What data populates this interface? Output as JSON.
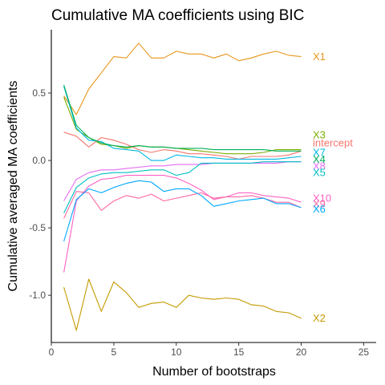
{
  "chart_data": {
    "type": "line",
    "title": "Cumulative MA coefficients using  BIC",
    "xlabel": "Number of bootstraps",
    "ylabel": "Cumulative averaged MA coefficients",
    "xlim": [
      0,
      26
    ],
    "ylim": [
      -1.35,
      0.97
    ],
    "xticks": [
      0,
      5,
      10,
      15,
      20,
      25
    ],
    "yticks": [
      -1.0,
      -0.5,
      0.0,
      0.5
    ],
    "ytick_labels": [
      "-1.0",
      "-0.5",
      "0.0",
      "0.5"
    ],
    "grid": false,
    "legend": "direct labels at line ends (right)",
    "x": [
      1,
      2,
      3,
      4,
      5,
      6,
      7,
      8,
      9,
      10,
      11,
      12,
      13,
      14,
      15,
      16,
      17,
      18,
      19,
      20
    ],
    "series": [
      {
        "name": "X1",
        "color": "#E7961A",
        "label_y": 0.77,
        "values": [
          0.48,
          0.34,
          0.53,
          0.65,
          0.77,
          0.76,
          0.87,
          0.76,
          0.76,
          0.81,
          0.79,
          0.79,
          0.76,
          0.79,
          0.74,
          0.76,
          0.79,
          0.81,
          0.78,
          0.77
        ]
      },
      {
        "name": "X3",
        "color": "#7CAE00",
        "label_y": 0.19,
        "values": [
          0.47,
          0.23,
          0.17,
          0.12,
          0.11,
          0.09,
          0.11,
          0.1,
          0.1,
          0.09,
          0.08,
          0.07,
          0.06,
          0.05,
          0.05,
          0.05,
          0.06,
          0.08,
          0.08,
          0.08
        ]
      },
      {
        "name": "intercept",
        "color": "#F8766D",
        "label_y": 0.13,
        "values": [
          0.21,
          0.18,
          0.1,
          0.17,
          0.15,
          0.12,
          0.08,
          0.06,
          0.08,
          0.07,
          0.05,
          0.05,
          0.04,
          0.03,
          0.01,
          0.03,
          0.03,
          0.03,
          0.04,
          0.07
        ]
      },
      {
        "name": "X7",
        "color": "#00B8E5",
        "label_y": 0.06,
        "values": [
          0.55,
          0.24,
          0.15,
          0.14,
          0.09,
          0.08,
          0.07,
          0.0,
          0.0,
          0.04,
          0.03,
          0.02,
          0.02,
          0.01,
          0.01,
          0.01,
          0.01,
          0.01,
          0.02,
          0.03
        ]
      },
      {
        "name": "X8",
        "color": "#E76BF3",
        "label_y": -0.04,
        "values": [
          -0.3,
          -0.14,
          -0.09,
          -0.07,
          -0.07,
          -0.06,
          -0.05,
          -0.04,
          -0.04,
          -0.03,
          -0.03,
          -0.03,
          -0.02,
          -0.02,
          -0.02,
          -0.02,
          -0.02,
          -0.02,
          -0.01,
          -0.01
        ]
      },
      {
        "name": "X4",
        "color": "#00B05A",
        "label_y": 0.01,
        "values": [
          0.56,
          0.26,
          0.17,
          0.13,
          0.11,
          0.1,
          0.11,
          0.1,
          0.1,
          0.09,
          0.09,
          0.09,
          0.08,
          0.08,
          0.08,
          0.08,
          0.08,
          0.07,
          0.07,
          0.07
        ]
      },
      {
        "name": "X5",
        "color": "#00BFC4",
        "label_y": -0.09,
        "values": [
          -0.39,
          -0.2,
          -0.13,
          -0.1,
          -0.09,
          -0.09,
          -0.08,
          -0.07,
          -0.07,
          -0.11,
          -0.09,
          -0.02,
          -0.02,
          -0.02,
          -0.02,
          -0.02,
          -0.01,
          -0.01,
          -0.01,
          -0.01
        ]
      },
      {
        "name": "X10",
        "color": "#FF61C3",
        "label_y": -0.28,
        "values": [
          -0.83,
          -0.3,
          -0.19,
          -0.14,
          -0.13,
          -0.11,
          -0.11,
          -0.11,
          -0.11,
          -0.13,
          -0.17,
          -0.22,
          -0.29,
          -0.27,
          -0.24,
          -0.24,
          -0.26,
          -0.27,
          -0.28,
          -0.31
        ]
      },
      {
        "name": "X9",
        "color": "#FF67A4",
        "label_y": -0.32,
        "values": [
          -0.43,
          -0.23,
          -0.24,
          -0.37,
          -0.3,
          -0.26,
          -0.28,
          -0.25,
          -0.3,
          -0.28,
          -0.26,
          -0.24,
          -0.28,
          -0.27,
          -0.27,
          -0.26,
          -0.28,
          -0.31,
          -0.31,
          -0.35
        ]
      },
      {
        "name": "X6",
        "color": "#00A9FF",
        "label_y": -0.36,
        "values": [
          -0.6,
          -0.29,
          -0.21,
          -0.24,
          -0.2,
          -0.17,
          -0.15,
          -0.16,
          -0.23,
          -0.21,
          -0.21,
          -0.26,
          -0.34,
          -0.32,
          -0.3,
          -0.29,
          -0.28,
          -0.32,
          -0.32,
          -0.35
        ]
      },
      {
        "name": "X2",
        "color": "#C49A00",
        "label_y": -1.17,
        "values": [
          -0.94,
          -1.26,
          -0.88,
          -1.12,
          -0.9,
          -0.98,
          -1.09,
          -1.06,
          -1.05,
          -1.09,
          -1.0,
          -1.02,
          -1.03,
          -1.02,
          -1.03,
          -1.07,
          -1.08,
          -1.12,
          -1.13,
          -1.17
        ]
      }
    ]
  }
}
